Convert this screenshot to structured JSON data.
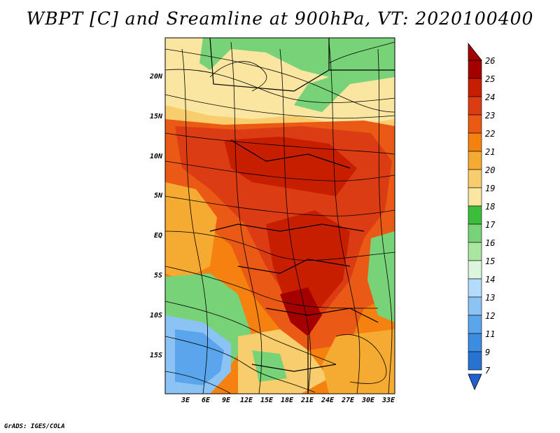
{
  "title": "WBPT [C] and Sreamline at 900hPa, VT: 2020100400",
  "credit": "GrADS: IGES/COLA",
  "map": {
    "lat_range": [
      -19,
      24
    ],
    "lon_range": [
      0,
      34
    ],
    "lat_labels": [
      "20N",
      "15N",
      "10N",
      "5N",
      "EQ",
      "5S",
      "10S",
      "15S"
    ],
    "lat_values": [
      20,
      15,
      10,
      5,
      0,
      -5,
      -10,
      -15
    ],
    "lon_labels": [
      "3E",
      "6E",
      "9E",
      "12E",
      "15E",
      "18E",
      "21E",
      "24E",
      "27E",
      "30E",
      "33E"
    ],
    "lon_values": [
      3,
      6,
      9,
      12,
      15,
      18,
      21,
      24,
      27,
      30,
      33
    ]
  },
  "colorbar": {
    "labels": [
      "26",
      "25",
      "24",
      "23",
      "22",
      "21",
      "20",
      "19",
      "18",
      "17",
      "16",
      "15",
      "14",
      "13",
      "12",
      "11",
      "9",
      "7"
    ],
    "colors": [
      "#a50000",
      "#c81e00",
      "#dc3c14",
      "#eb5a14",
      "#f5820f",
      "#f5aa32",
      "#f8cd6e",
      "#fae6a0",
      "#3cbe3c",
      "#78d278",
      "#aae6a0",
      "#dcf5dc",
      "#b4dcfa",
      "#8cc3f5",
      "#5aa5eb",
      "#3c8ce1",
      "#2873d2"
    ],
    "low_arrow_color": "#2060d0",
    "high_arrow_color": "#a50000"
  },
  "icons": {
    "colorbar_arrows": "triangle-arrow"
  }
}
